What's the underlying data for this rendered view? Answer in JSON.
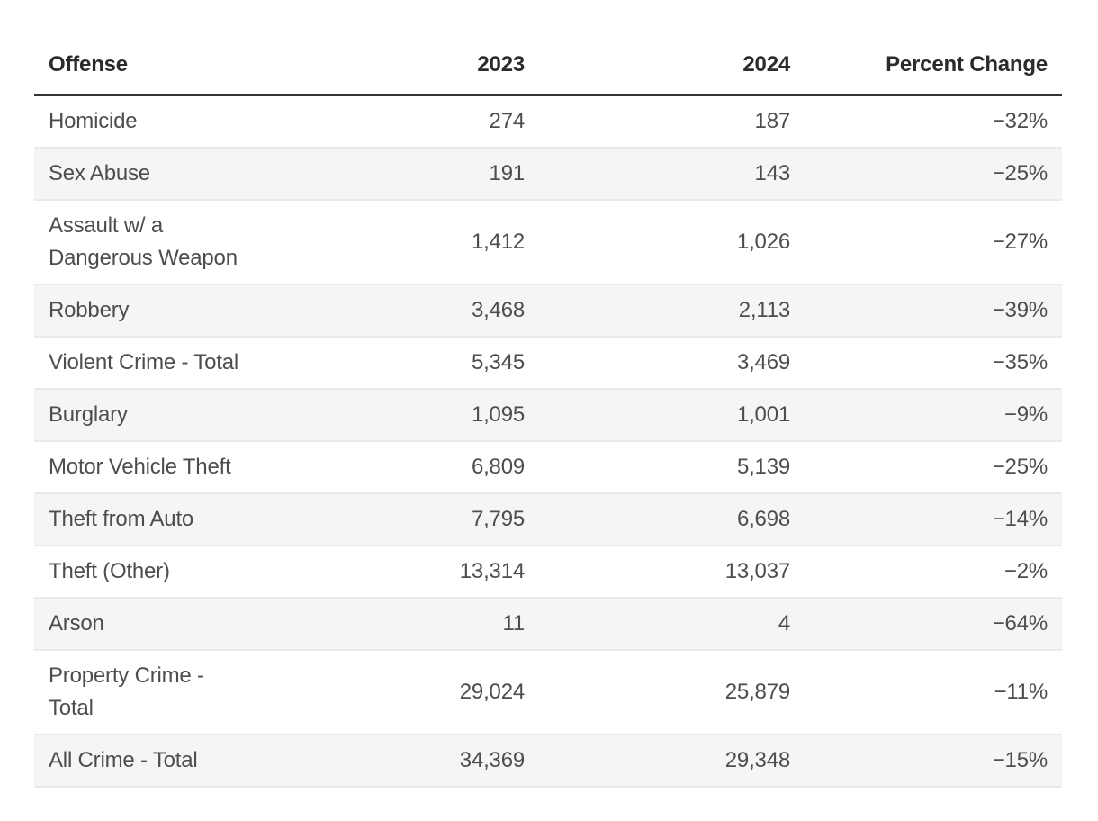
{
  "table": {
    "columns": [
      {
        "key": "offense",
        "label": "Offense"
      },
      {
        "key": "y2023",
        "label": "2023"
      },
      {
        "key": "y2024",
        "label": "2024"
      },
      {
        "key": "pct",
        "label": "Percent Change"
      }
    ],
    "rows": [
      {
        "offense": "Homicide",
        "y2023": "274",
        "y2024": "187",
        "pct": "−32%"
      },
      {
        "offense": "Sex Abuse",
        "y2023": "191",
        "y2024": "143",
        "pct": "−25%"
      },
      {
        "offense": "Assault w/ a Dangerous Weapon",
        "y2023": "1,412",
        "y2024": "1,026",
        "pct": "−27%"
      },
      {
        "offense": "Robbery",
        "y2023": "3,468",
        "y2024": "2,113",
        "pct": "−39%"
      },
      {
        "offense": "Violent Crime - Total",
        "y2023": "5,345",
        "y2024": "3,469",
        "pct": "−35%"
      },
      {
        "offense": "Burglary",
        "y2023": "1,095",
        "y2024": "1,001",
        "pct": "−9%"
      },
      {
        "offense": "Motor Vehicle Theft",
        "y2023": "6,809",
        "y2024": "5,139",
        "pct": "−25%"
      },
      {
        "offense": "Theft from Auto",
        "y2023": "7,795",
        "y2024": "6,698",
        "pct": "−14%"
      },
      {
        "offense": "Theft (Other)",
        "y2023": "13,314",
        "y2024": "13,037",
        "pct": "−2%"
      },
      {
        "offense": "Arson",
        "y2023": "11",
        "y2024": "4",
        "pct": "−64%"
      },
      {
        "offense": "Property Crime - Total",
        "y2023": "29,024",
        "y2024": "25,879",
        "pct": "−11%"
      },
      {
        "offense": "All Crime - Total",
        "y2023": "34,369",
        "y2024": "29,348",
        "pct": "−15%"
      }
    ]
  },
  "chart_data": {
    "type": "table",
    "columns": [
      "Offense",
      "2023",
      "2024",
      "Percent Change"
    ],
    "rows": [
      [
        "Homicide",
        274,
        187,
        "−32%"
      ],
      [
        "Sex Abuse",
        191,
        143,
        "−25%"
      ],
      [
        "Assault w/ a Dangerous Weapon",
        1412,
        1026,
        "−27%"
      ],
      [
        "Robbery",
        3468,
        2113,
        "−39%"
      ],
      [
        "Violent Crime - Total",
        5345,
        3469,
        "−35%"
      ],
      [
        "Burglary",
        1095,
        1001,
        "−9%"
      ],
      [
        "Motor Vehicle Theft",
        6809,
        5139,
        "−25%"
      ],
      [
        "Theft from Auto",
        7795,
        6698,
        "−14%"
      ],
      [
        "Theft (Other)",
        13314,
        13037,
        "−2%"
      ],
      [
        "Arson",
        11,
        4,
        "−64%"
      ],
      [
        "Property Crime - Total",
        29024,
        25879,
        "−11%"
      ],
      [
        "All Crime - Total",
        34369,
        29348,
        "−15%"
      ]
    ],
    "layout_hints": {
      "striped_rows": true,
      "stripe_on": "even",
      "numeric_alignment": "right",
      "header_rule": "thick"
    }
  },
  "colors": {
    "background": "#ffffff",
    "stripe": "#f5f5f5",
    "header_rule": "#333333",
    "row_rule": "#e9e9e9",
    "header_text": "#2b2b2b",
    "body_text": "#4d4d4d"
  }
}
